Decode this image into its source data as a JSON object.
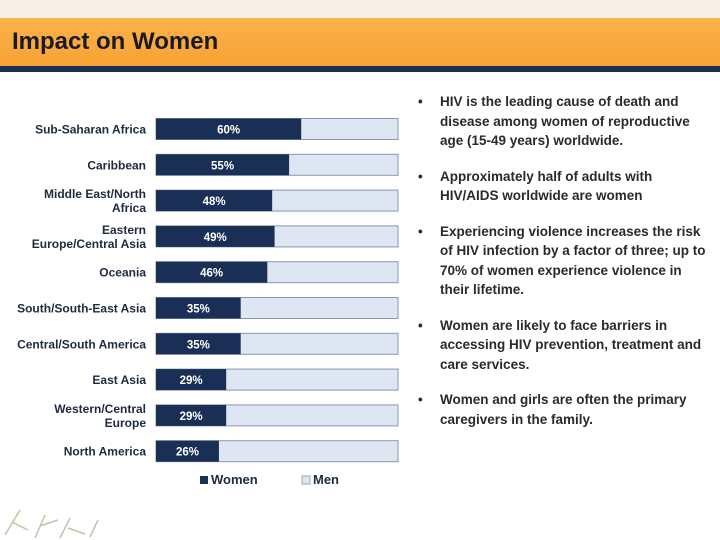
{
  "slide": {
    "title": "Impact on Women",
    "bullets": [
      "HIV is the leading cause of death and disease among women of reproductive age (15-49 years) worldwide.",
      "Approximately half of adults with HIV/AIDS worldwide are women",
      "Experiencing violence increases the risk of HIV infection by a factor of three; up to 70% of women experience violence in their lifetime.",
      "Women are likely to face barriers in accessing HIV prevention, treatment and care services.",
      "Women and girls are often the primary caregivers in the family."
    ],
    "bullet_char": "•"
  },
  "chart_data": {
    "type": "bar",
    "orientation": "horizontal",
    "stacked": true,
    "categories": [
      "Sub-Saharan Africa",
      "Caribbean",
      "Middle East/North Africa",
      "Eastern Europe/Central Asia",
      "Oceania",
      "South/South-East Asia",
      "Central/South America",
      "East Asia",
      "Western/Central Europe",
      "North America"
    ],
    "category_lines": [
      [
        "Sub-Saharan Africa"
      ],
      [
        "Caribbean"
      ],
      [
        "Middle East/North",
        "Africa"
      ],
      [
        "Eastern",
        "Europe/Central Asia"
      ],
      [
        "Oceania"
      ],
      [
        "South/South-East Asia"
      ],
      [
        "Central/South America"
      ],
      [
        "East Asia"
      ],
      [
        "Western/Central",
        "Europe"
      ],
      [
        "North America"
      ]
    ],
    "series": [
      {
        "name": "Women",
        "values": [
          60,
          55,
          48,
          49,
          46,
          35,
          35,
          29,
          29,
          26
        ],
        "color": "#1a2f55"
      },
      {
        "name": "Men",
        "values": [
          40,
          45,
          52,
          51,
          54,
          65,
          65,
          71,
          71,
          74
        ],
        "color": "#dde6f2"
      }
    ],
    "data_labels": [
      "60%",
      "55%",
      "48%",
      "49%",
      "46%",
      "35%",
      "35%",
      "29%",
      "29%",
      "26%"
    ],
    "xlim": [
      0,
      100
    ],
    "legend": "bottom",
    "title": "",
    "xlabel": "",
    "ylabel": ""
  }
}
